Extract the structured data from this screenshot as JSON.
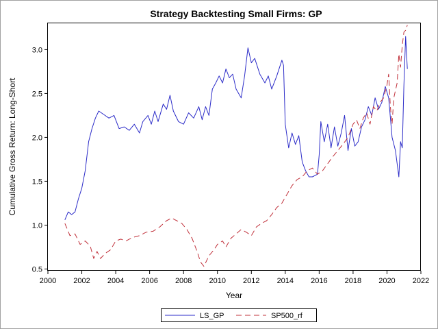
{
  "chart_data": {
    "type": "line",
    "title": "Strategy Backtesting Small Firms: GP",
    "xlabel": "Year",
    "ylabel": "Cumulative Gross Return: Long-Short",
    "xlim": [
      2000,
      2022
    ],
    "ylim": [
      0.48,
      3.3
    ],
    "x_ticks": [
      "2000",
      "2002",
      "2004",
      "2006",
      "2008",
      "2010",
      "2012",
      "2014",
      "2016",
      "2018",
      "2020",
      "2022"
    ],
    "y_ticks": [
      "0.5",
      "1.0",
      "1.5",
      "2.0",
      "2.5",
      "3.0"
    ],
    "legend_position": "bottom-center",
    "series": [
      {
        "name": "LS_GP",
        "color": "#2b2bc8",
        "style": "solid",
        "points": [
          [
            2001.0,
            1.06
          ],
          [
            2001.2,
            1.15
          ],
          [
            2001.4,
            1.12
          ],
          [
            2001.6,
            1.15
          ],
          [
            2001.8,
            1.3
          ],
          [
            2002.0,
            1.42
          ],
          [
            2002.2,
            1.62
          ],
          [
            2002.4,
            1.95
          ],
          [
            2002.6,
            2.1
          ],
          [
            2002.8,
            2.22
          ],
          [
            2003.0,
            2.3
          ],
          [
            2003.3,
            2.26
          ],
          [
            2003.6,
            2.22
          ],
          [
            2003.9,
            2.25
          ],
          [
            2004.2,
            2.1
          ],
          [
            2004.5,
            2.12
          ],
          [
            2004.8,
            2.08
          ],
          [
            2005.1,
            2.15
          ],
          [
            2005.4,
            2.05
          ],
          [
            2005.6,
            2.18
          ],
          [
            2005.9,
            2.25
          ],
          [
            2006.1,
            2.15
          ],
          [
            2006.3,
            2.3
          ],
          [
            2006.5,
            2.18
          ],
          [
            2006.8,
            2.38
          ],
          [
            2007.0,
            2.32
          ],
          [
            2007.2,
            2.48
          ],
          [
            2007.4,
            2.3
          ],
          [
            2007.7,
            2.18
          ],
          [
            2008.0,
            2.15
          ],
          [
            2008.3,
            2.28
          ],
          [
            2008.6,
            2.22
          ],
          [
            2008.9,
            2.35
          ],
          [
            2009.1,
            2.2
          ],
          [
            2009.3,
            2.35
          ],
          [
            2009.5,
            2.25
          ],
          [
            2009.7,
            2.55
          ],
          [
            2009.9,
            2.62
          ],
          [
            2010.1,
            2.7
          ],
          [
            2010.3,
            2.62
          ],
          [
            2010.5,
            2.78
          ],
          [
            2010.7,
            2.68
          ],
          [
            2010.9,
            2.72
          ],
          [
            2011.1,
            2.55
          ],
          [
            2011.4,
            2.45
          ],
          [
            2011.6,
            2.7
          ],
          [
            2011.8,
            3.02
          ],
          [
            2012.0,
            2.85
          ],
          [
            2012.2,
            2.9
          ],
          [
            2012.5,
            2.72
          ],
          [
            2012.8,
            2.62
          ],
          [
            2013.0,
            2.7
          ],
          [
            2013.2,
            2.55
          ],
          [
            2013.5,
            2.7
          ],
          [
            2013.8,
            2.88
          ],
          [
            2013.9,
            2.82
          ],
          [
            2014.0,
            2.15
          ],
          [
            2014.2,
            1.88
          ],
          [
            2014.4,
            2.05
          ],
          [
            2014.6,
            1.92
          ],
          [
            2014.8,
            2.02
          ],
          [
            2015.0,
            1.72
          ],
          [
            2015.2,
            1.62
          ],
          [
            2015.4,
            1.55
          ],
          [
            2015.6,
            1.55
          ],
          [
            2015.9,
            1.58
          ],
          [
            2016.0,
            1.8
          ],
          [
            2016.1,
            2.18
          ],
          [
            2016.3,
            1.95
          ],
          [
            2016.5,
            2.15
          ],
          [
            2016.7,
            1.88
          ],
          [
            2016.9,
            2.12
          ],
          [
            2017.1,
            1.9
          ],
          [
            2017.3,
            2.05
          ],
          [
            2017.5,
            2.25
          ],
          [
            2017.7,
            1.85
          ],
          [
            2017.9,
            2.1
          ],
          [
            2018.1,
            1.9
          ],
          [
            2018.3,
            1.95
          ],
          [
            2018.5,
            2.12
          ],
          [
            2018.7,
            2.2
          ],
          [
            2018.9,
            2.35
          ],
          [
            2019.1,
            2.25
          ],
          [
            2019.3,
            2.45
          ],
          [
            2019.5,
            2.32
          ],
          [
            2019.7,
            2.4
          ],
          [
            2019.9,
            2.58
          ],
          [
            2020.1,
            2.45
          ],
          [
            2020.3,
            2.0
          ],
          [
            2020.5,
            1.85
          ],
          [
            2020.7,
            1.55
          ],
          [
            2020.8,
            1.95
          ],
          [
            2020.9,
            1.88
          ],
          [
            2021.0,
            2.6
          ],
          [
            2021.1,
            3.15
          ],
          [
            2021.2,
            2.78
          ]
        ]
      },
      {
        "name": "SP500_rf",
        "color": "#c0303a",
        "style": "dashed",
        "points": [
          [
            2001.0,
            1.02
          ],
          [
            2001.3,
            0.88
          ],
          [
            2001.6,
            0.9
          ],
          [
            2001.9,
            0.78
          ],
          [
            2002.2,
            0.82
          ],
          [
            2002.5,
            0.76
          ],
          [
            2002.7,
            0.62
          ],
          [
            2002.9,
            0.7
          ],
          [
            2003.1,
            0.62
          ],
          [
            2003.4,
            0.68
          ],
          [
            2003.7,
            0.72
          ],
          [
            2004.0,
            0.82
          ],
          [
            2004.3,
            0.84
          ],
          [
            2004.6,
            0.82
          ],
          [
            2005.0,
            0.86
          ],
          [
            2005.4,
            0.88
          ],
          [
            2005.8,
            0.92
          ],
          [
            2006.2,
            0.93
          ],
          [
            2006.6,
            0.98
          ],
          [
            2007.0,
            1.05
          ],
          [
            2007.3,
            1.08
          ],
          [
            2007.6,
            1.05
          ],
          [
            2007.9,
            1.02
          ],
          [
            2008.2,
            0.95
          ],
          [
            2008.5,
            0.85
          ],
          [
            2008.8,
            0.7
          ],
          [
            2009.0,
            0.58
          ],
          [
            2009.2,
            0.53
          ],
          [
            2009.5,
            0.65
          ],
          [
            2009.8,
            0.72
          ],
          [
            2010.0,
            0.78
          ],
          [
            2010.3,
            0.82
          ],
          [
            2010.5,
            0.75
          ],
          [
            2010.8,
            0.85
          ],
          [
            2011.1,
            0.9
          ],
          [
            2011.4,
            0.95
          ],
          [
            2011.7,
            0.92
          ],
          [
            2012.0,
            0.88
          ],
          [
            2012.3,
            0.98
          ],
          [
            2012.6,
            1.02
          ],
          [
            2012.9,
            1.05
          ],
          [
            2013.2,
            1.12
          ],
          [
            2013.5,
            1.2
          ],
          [
            2013.8,
            1.25
          ],
          [
            2014.1,
            1.35
          ],
          [
            2014.4,
            1.45
          ],
          [
            2014.7,
            1.52
          ],
          [
            2015.0,
            1.55
          ],
          [
            2015.3,
            1.62
          ],
          [
            2015.6,
            1.65
          ],
          [
            2015.9,
            1.58
          ],
          [
            2016.2,
            1.62
          ],
          [
            2016.5,
            1.7
          ],
          [
            2016.8,
            1.78
          ],
          [
            2017.1,
            1.85
          ],
          [
            2017.4,
            1.92
          ],
          [
            2017.7,
            2.0
          ],
          [
            2018.0,
            2.15
          ],
          [
            2018.2,
            2.2
          ],
          [
            2018.4,
            2.1
          ],
          [
            2018.6,
            2.22
          ],
          [
            2018.8,
            2.28
          ],
          [
            2019.0,
            2.15
          ],
          [
            2019.2,
            2.35
          ],
          [
            2019.4,
            2.3
          ],
          [
            2019.6,
            2.4
          ],
          [
            2019.8,
            2.45
          ],
          [
            2020.0,
            2.6
          ],
          [
            2020.1,
            2.72
          ],
          [
            2020.2,
            2.35
          ],
          [
            2020.3,
            2.15
          ],
          [
            2020.4,
            2.45
          ],
          [
            2020.6,
            2.62
          ],
          [
            2020.7,
            2.95
          ],
          [
            2020.8,
            2.8
          ],
          [
            2020.9,
            3.05
          ],
          [
            2021.0,
            3.2
          ],
          [
            2021.1,
            3.22
          ],
          [
            2021.2,
            3.28
          ]
        ]
      }
    ]
  }
}
